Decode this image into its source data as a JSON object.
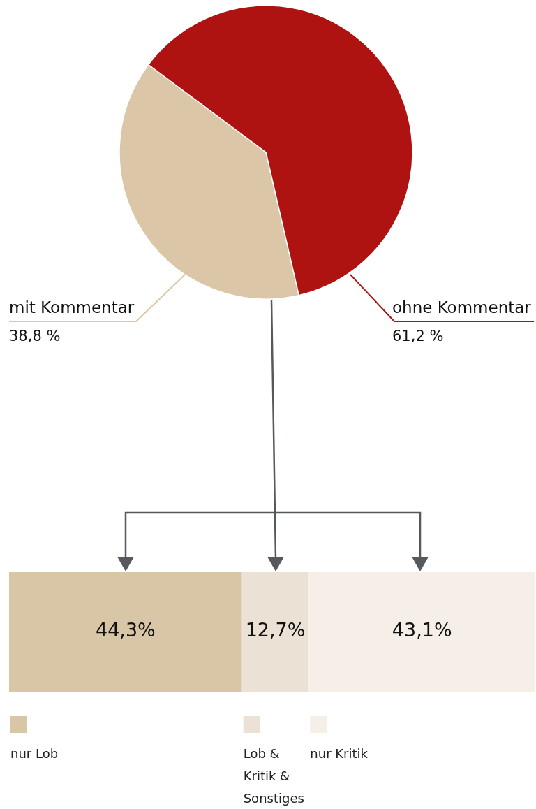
{
  "chart_data": [
    {
      "type": "pie",
      "categories": [
        "mit Kommentar",
        "ohne Kommentar"
      ],
      "values": [
        38.8,
        61.2
      ],
      "colors": [
        "#dbc7a7",
        "#ae1311"
      ],
      "value_labels": [
        "38,8 %",
        "61,2 %"
      ]
    },
    {
      "type": "bar",
      "orientation": "horizontal",
      "stacked": true,
      "categories": [
        null
      ],
      "legend": "bottom",
      "series": [
        {
          "name": "nur Lob",
          "color": "#d9c6a6",
          "values": [
            44.3
          ],
          "value_labels": [
            "44,3%"
          ]
        },
        {
          "name": "Lob & Kritik & Sonstiges",
          "color": "#ebe1d4",
          "values": [
            12.7
          ],
          "value_labels": [
            "12,7%"
          ]
        },
        {
          "name": "nur Kritik",
          "color": "#f5efe8",
          "values": [
            43.1
          ],
          "value_labels": [
            "43,1%"
          ]
        }
      ]
    }
  ]
}
